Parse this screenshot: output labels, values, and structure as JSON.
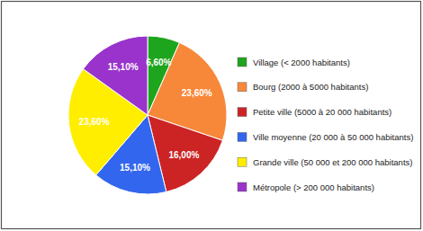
{
  "chart_data": {
    "type": "pie",
    "categories": [
      "Village (< 2000 habitants)",
      "Bourg (2000 à 5000 habitants)",
      "Petite ville (5000 à 20 000 habitants)",
      "Ville moyenne (20 000 à 50 000 habitants)",
      "Grande ville (50 000 et 200 000 habitants)",
      "Métropole (> 200 000 habitants)"
    ],
    "values": [
      6.6,
      23.6,
      16.0,
      15.1,
      23.6,
      15.1
    ],
    "value_labels": [
      "6,60%",
      "23,60%",
      "16,00%",
      "15,10%",
      "23,60%",
      "15,10%"
    ],
    "colors": [
      "#1ea51e",
      "#f7883a",
      "#cc2424",
      "#3366ee",
      "#ffee00",
      "#9933cc"
    ],
    "data_labels": true,
    "legend": "right"
  }
}
